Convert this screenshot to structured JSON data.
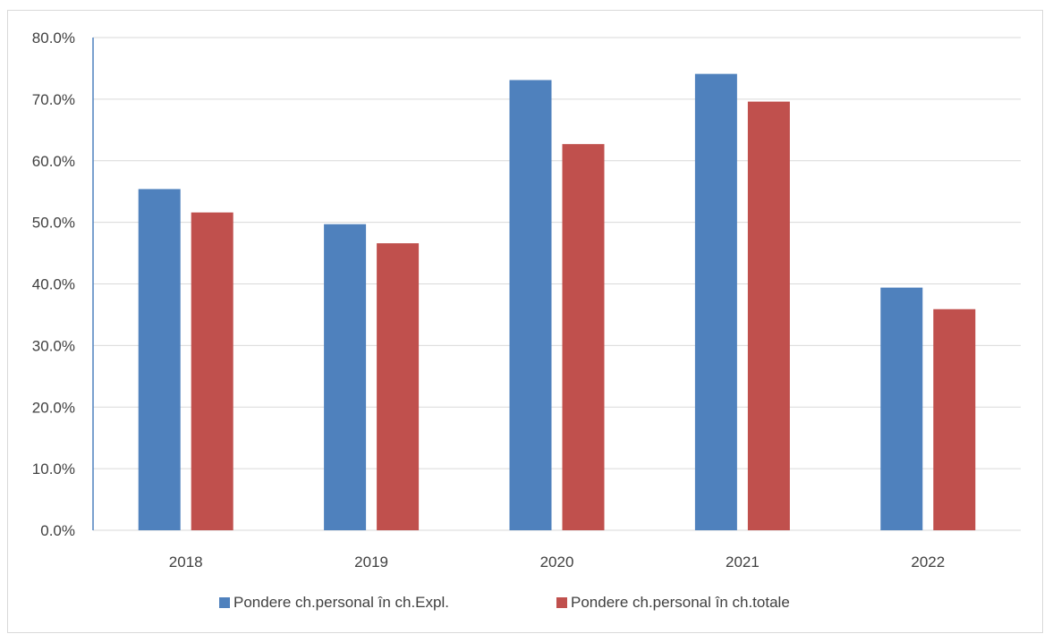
{
  "chart_data": {
    "type": "bar",
    "title": "",
    "xlabel": "",
    "ylabel": "",
    "categories": [
      "2018",
      "2019",
      "2020",
      "2021",
      "2022"
    ],
    "series": [
      {
        "name": "Pondere ch.personal în ch.Expl.",
        "values": [
          55.4,
          49.7,
          73.1,
          74.1,
          39.4
        ],
        "color": "#4f81bd"
      },
      {
        "name": "Pondere ch.personal în ch.totale",
        "values": [
          51.6,
          46.6,
          62.7,
          69.6,
          35.9
        ],
        "color": "#c0504d"
      }
    ],
    "ylim": [
      0,
      80
    ],
    "yticks": [
      0,
      10,
      20,
      30,
      40,
      50,
      60,
      70,
      80
    ],
    "ytick_labels": [
      "0.0%",
      "10.0%",
      "20.0%",
      "30.0%",
      "40.0%",
      "50.0%",
      "60.0%",
      "70.0%",
      "80.0%"
    ],
    "grid": true,
    "legend_position": "bottom",
    "colors": {
      "gridline": "#d9d9d9",
      "axis": "#4f81bd",
      "text": "#404040"
    }
  }
}
